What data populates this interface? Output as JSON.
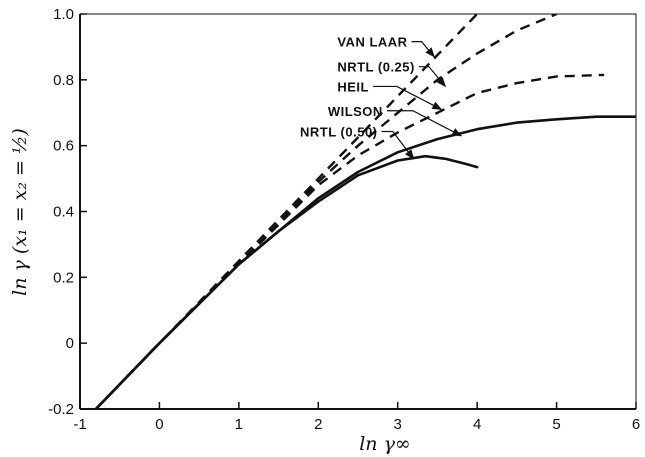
{
  "chart_data": {
    "type": "line",
    "title": "",
    "xlabel": "ln γ∞",
    "ylabel": "ln γ (x₁ = x₂ = ½)",
    "xlim": [
      -1,
      6
    ],
    "ylim": [
      -0.2,
      1.0
    ],
    "x_ticks": [
      -1,
      0,
      1,
      2,
      3,
      4,
      5,
      6
    ],
    "x_tick_labels": [
      "-1",
      "0",
      "1",
      "2",
      "3",
      "4",
      "5",
      "6"
    ],
    "y_ticks": [
      -0.2,
      0,
      0.2,
      0.4,
      0.6,
      0.8,
      1.0
    ],
    "y_tick_labels": [
      "-0.2",
      "0",
      "0.2",
      "0.4",
      "0.6",
      "0.8",
      "1.0"
    ],
    "grid": false,
    "legend": "none (series labelled directly with leader arrows)",
    "series": [
      {
        "name": "VAN LAAR",
        "style": "dashed",
        "label_pos": [
          2.24,
          0.916
        ],
        "arrow_to": [
          3.46,
          0.87
        ],
        "points": [
          [
            -1,
            -0.25
          ],
          [
            0,
            0
          ],
          [
            1,
            0.25
          ],
          [
            2,
            0.5
          ],
          [
            2.5,
            0.625
          ],
          [
            3,
            0.75
          ],
          [
            3.5,
            0.875
          ],
          [
            4,
            1.0
          ]
        ]
      },
      {
        "name": "NRTL (0.25)",
        "style": "dashed",
        "label_pos": [
          2.24,
          0.84
        ],
        "arrow_to": [
          3.6,
          0.78
        ],
        "points": [
          [
            -1,
            -0.25
          ],
          [
            0,
            0
          ],
          [
            1,
            0.24
          ],
          [
            2,
            0.49
          ],
          [
            2.5,
            0.6
          ],
          [
            3,
            0.7
          ],
          [
            3.5,
            0.8
          ],
          [
            4,
            0.88
          ],
          [
            4.5,
            0.95
          ],
          [
            5,
            1.0
          ]
        ]
      },
      {
        "name": "HEIL",
        "style": "dashed",
        "label_pos": [
          2.24,
          0.78
        ],
        "arrow_to": [
          3.55,
          0.71
        ],
        "points": [
          [
            -1,
            -0.25
          ],
          [
            0,
            0
          ],
          [
            1,
            0.24
          ],
          [
            2,
            0.48
          ],
          [
            2.5,
            0.57
          ],
          [
            3,
            0.64
          ],
          [
            3.5,
            0.7
          ],
          [
            4,
            0.76
          ],
          [
            4.5,
            0.79
          ],
          [
            5,
            0.81
          ],
          [
            5.6,
            0.815
          ]
        ]
      },
      {
        "name": "WILSON",
        "style": "solid",
        "label_pos": [
          2.12,
          0.706
        ],
        "arrow_to": [
          3.8,
          0.63
        ],
        "points": [
          [
            -1,
            -0.25
          ],
          [
            0,
            0
          ],
          [
            1,
            0.24
          ],
          [
            2,
            0.44
          ],
          [
            2.5,
            0.52
          ],
          [
            3,
            0.58
          ],
          [
            3.5,
            0.62
          ],
          [
            4,
            0.65
          ],
          [
            4.5,
            0.67
          ],
          [
            5,
            0.68
          ],
          [
            5.5,
            0.688
          ],
          [
            6,
            0.688
          ]
        ]
      },
      {
        "name": "NRTL (0.50)",
        "style": "solid",
        "label_pos": [
          1.77,
          0.643
        ],
        "arrow_to": [
          3.2,
          0.56
        ],
        "points": [
          [
            -1,
            -0.25
          ],
          [
            0,
            0
          ],
          [
            1,
            0.24
          ],
          [
            1.5,
            0.34
          ],
          [
            2,
            0.43
          ],
          [
            2.5,
            0.51
          ],
          [
            3,
            0.555
          ],
          [
            3.35,
            0.568
          ],
          [
            3.6,
            0.56
          ],
          [
            3.85,
            0.545
          ],
          [
            4,
            0.535
          ]
        ]
      }
    ]
  }
}
